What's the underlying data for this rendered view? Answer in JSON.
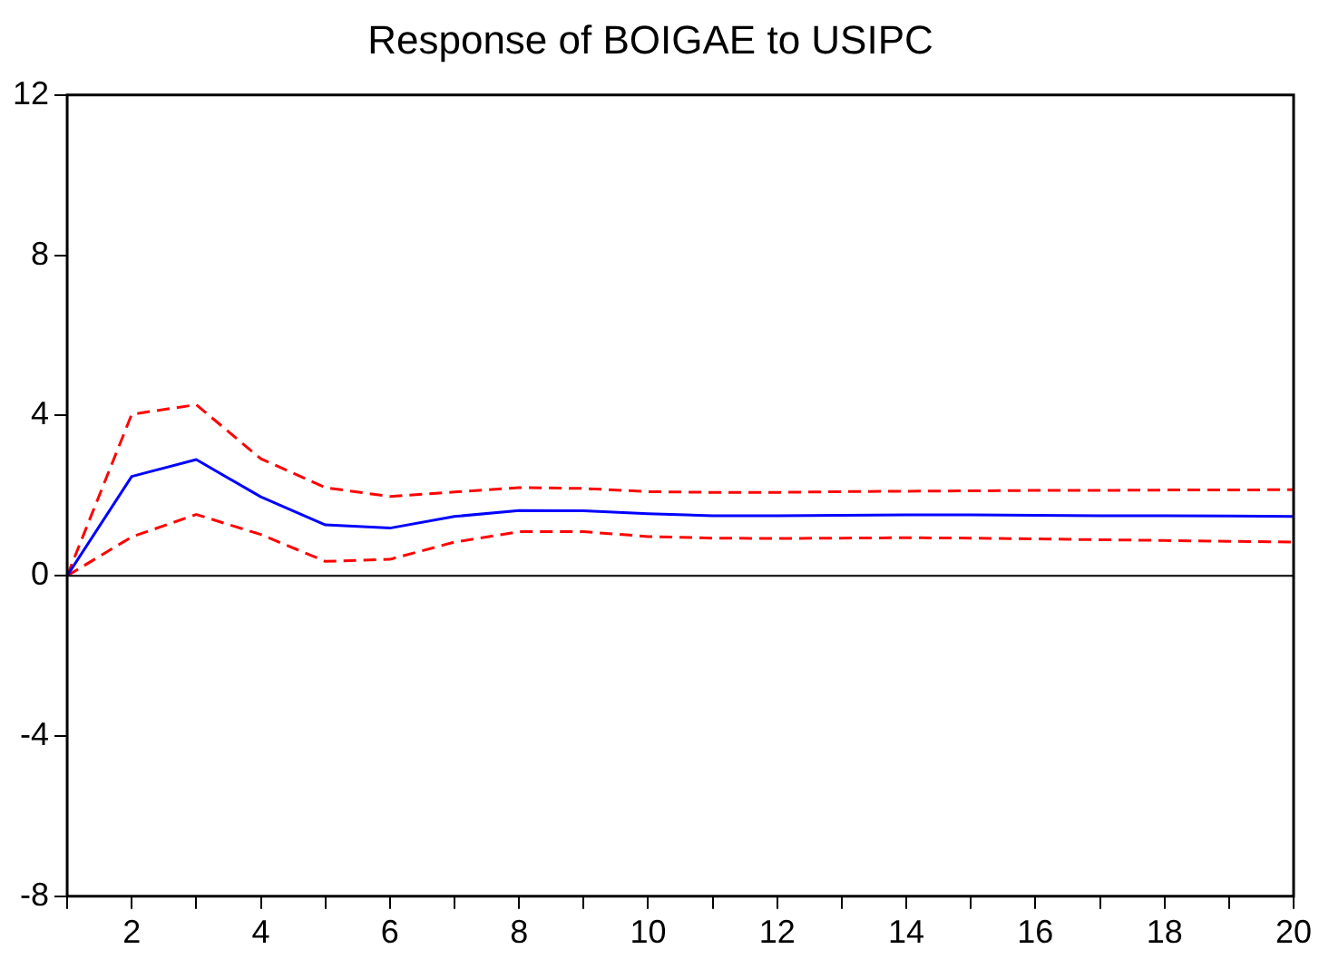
{
  "chart_data": {
    "type": "line",
    "title": "Response of BOIGAE to USIPC",
    "x": [
      1,
      2,
      3,
      4,
      5,
      6,
      7,
      8,
      9,
      10,
      11,
      12,
      13,
      14,
      15,
      16,
      17,
      18,
      19,
      20
    ],
    "xlim": [
      1,
      20
    ],
    "xticks": [
      {
        "value": 1,
        "label": null
      },
      2,
      {
        "value": 3,
        "label": null
      },
      4,
      {
        "value": 5,
        "label": null
      },
      6,
      {
        "value": 7,
        "label": null
      },
      8,
      {
        "value": 9,
        "label": null
      },
      10,
      {
        "value": 11,
        "label": null
      },
      12,
      {
        "value": 13,
        "label": null
      },
      14,
      {
        "value": 15,
        "label": null
      },
      16,
      {
        "value": 17,
        "label": null
      },
      18,
      {
        "value": 19,
        "label": null
      },
      20
    ],
    "ylim": [
      -8,
      12
    ],
    "yticks": [
      -8,
      -4,
      0,
      4,
      8,
      12
    ],
    "grid": false,
    "legend": false,
    "marker": "none",
    "series": [
      {
        "color": "#0000ff",
        "line_style": "solid",
        "values": [
          0,
          2.48,
          2.9,
          1.97,
          1.27,
          1.19,
          1.48,
          1.63,
          1.62,
          1.55,
          1.5,
          1.5,
          1.51,
          1.52,
          1.52,
          1.51,
          1.5,
          1.5,
          1.49,
          1.48
        ]
      },
      {
        "color": "#ff0000",
        "line_style": "dashed",
        "values": [
          0,
          4.03,
          4.27,
          2.92,
          2.2,
          1.98,
          2.09,
          2.2,
          2.18,
          2.1,
          2.08,
          2.08,
          2.1,
          2.11,
          2.12,
          2.13,
          2.13,
          2.14,
          2.14,
          2.15
        ]
      },
      {
        "color": "#ff0000",
        "line_style": "dashed",
        "values": [
          0,
          0.97,
          1.53,
          1.03,
          0.36,
          0.41,
          0.84,
          1.1,
          1.1,
          0.98,
          0.94,
          0.93,
          0.94,
          0.95,
          0.94,
          0.92,
          0.9,
          0.88,
          0.86,
          0.84
        ]
      }
    ],
    "ref_lines": [
      {
        "axis": "y",
        "value": 0,
        "color": "#000000"
      }
    ]
  }
}
